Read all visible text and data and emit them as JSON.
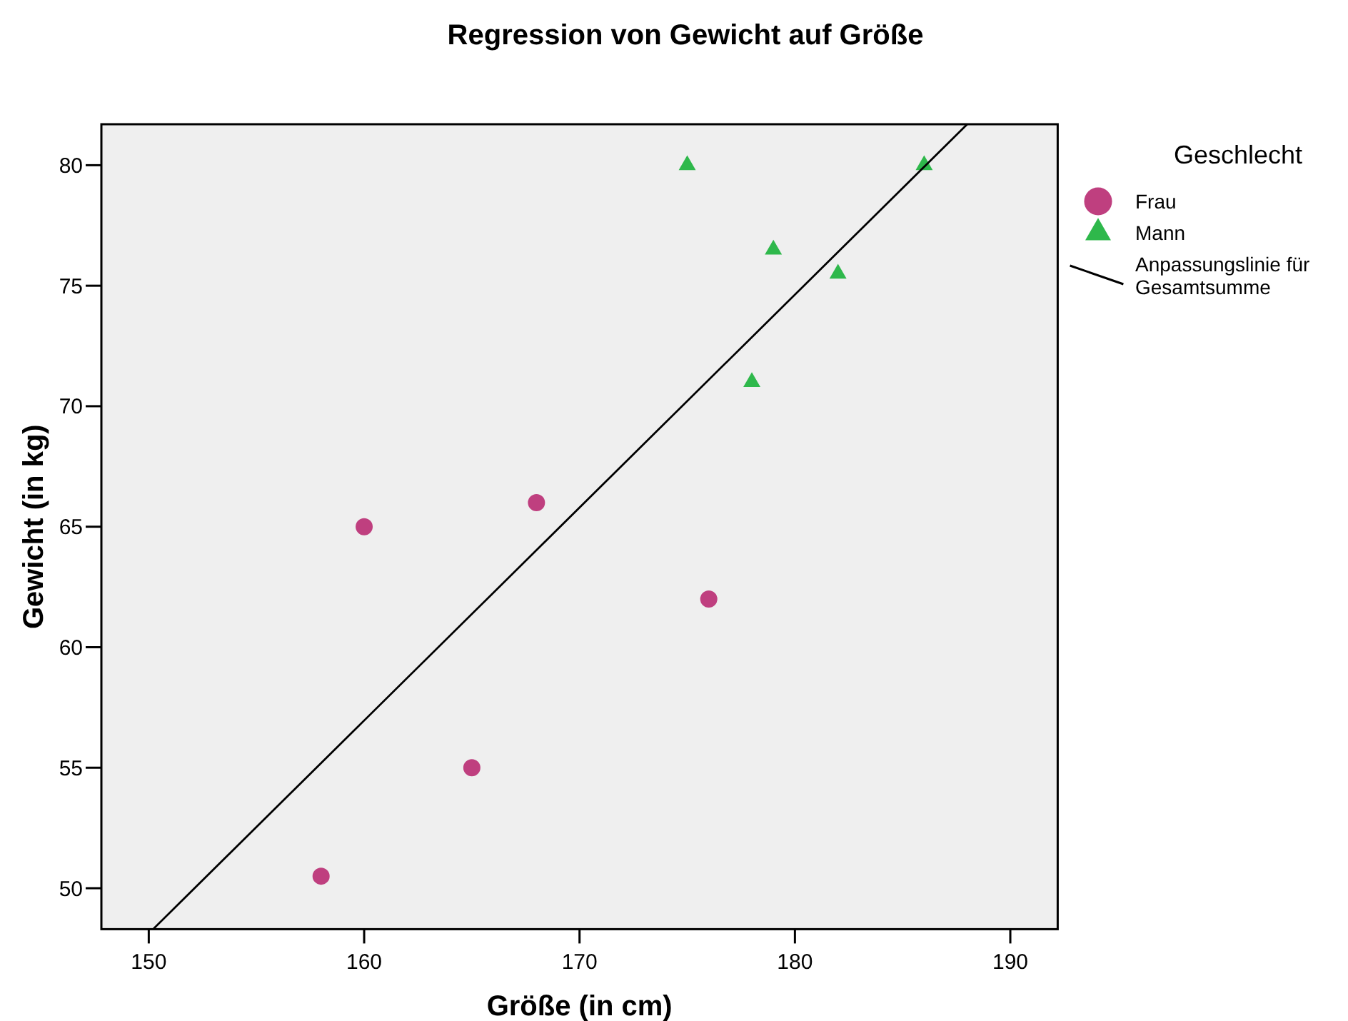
{
  "chart_data": {
    "type": "scatter",
    "title": "Regression von Gewicht auf Größe",
    "xlabel": "Größe (in cm)",
    "ylabel": "Gewicht (in kg)",
    "legend_title": "Geschlecht",
    "legend": "right",
    "xlim": [
      147.8,
      192.2
    ],
    "xticks": [
      150,
      160,
      170,
      180,
      190
    ],
    "ylim": [
      48.3,
      81.7
    ],
    "yticks": [
      50,
      55,
      60,
      65,
      70,
      75,
      80
    ],
    "series": [
      {
        "name": "Frau",
        "color": "#bf3f7f",
        "marker": "circle",
        "x": [
          158,
          160,
          165,
          168,
          176
        ],
        "values": [
          50.5,
          65,
          55,
          66,
          62
        ]
      },
      {
        "name": "Mann",
        "color": "#2eb84b",
        "marker": "triangle",
        "x": [
          175,
          178,
          179,
          182,
          186
        ],
        "values": [
          80,
          71,
          76.5,
          75.5,
          80
        ]
      },
      {
        "name": "Anpassungslinie für Gesamtsumme",
        "type": "line",
        "color": "#000000",
        "line_style": "solid",
        "marker": "none",
        "x": [
          150.2,
          188.0
        ],
        "values": [
          48.3,
          81.7
        ]
      }
    ]
  }
}
